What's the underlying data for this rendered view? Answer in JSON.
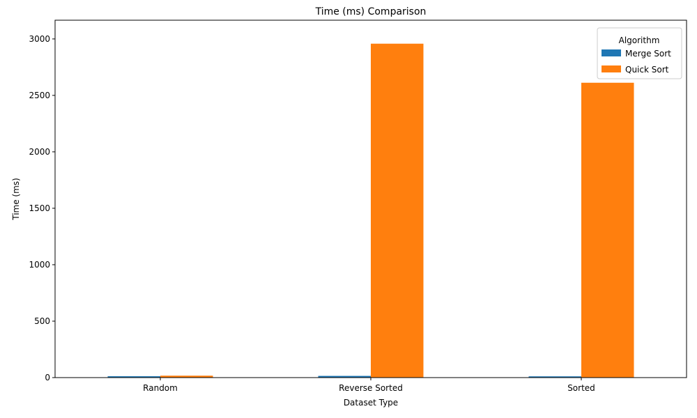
{
  "chart_data": {
    "type": "bar",
    "title": "Time (ms) Comparison",
    "xlabel": "Dataset Type",
    "ylabel": "Time (ms)",
    "categories": [
      "Random",
      "Reverse Sorted",
      "Sorted"
    ],
    "series": [
      {
        "name": "Merge Sort",
        "values": [
          12,
          15,
          11
        ],
        "color": "#1f77b4"
      },
      {
        "name": "Quick Sort",
        "values": [
          17,
          2958,
          2612
        ],
        "color": "#ff7f0e"
      }
    ],
    "ylim": [
      0,
      3166
    ],
    "yticks": [
      0,
      500,
      1000,
      1500,
      2000,
      2500,
      3000
    ],
    "legend_title": "Algorithm",
    "legend_position": "top-right",
    "grid": false
  }
}
